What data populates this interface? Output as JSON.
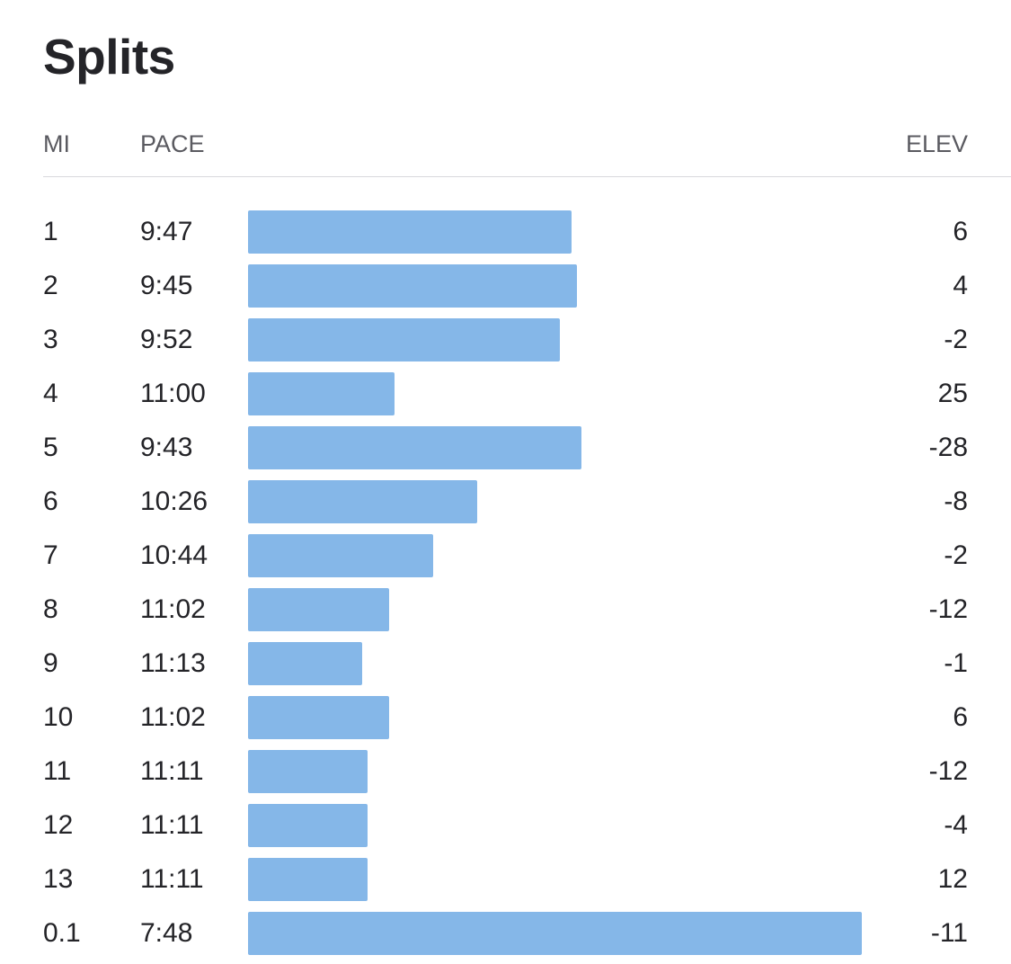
{
  "title": "Splits",
  "columns": {
    "mi": "MI",
    "pace": "PACE",
    "elev": "ELEV"
  },
  "bar_color": "#85b7e8",
  "chart_data": {
    "type": "bar",
    "orientation": "horizontal",
    "title": "Splits",
    "categories": [
      "1",
      "2",
      "3",
      "4",
      "5",
      "6",
      "7",
      "8",
      "9",
      "10",
      "11",
      "12",
      "13",
      "0.1"
    ],
    "pace_labels": [
      "9:47",
      "9:45",
      "9:52",
      "11:00",
      "9:43",
      "10:26",
      "10:44",
      "11:02",
      "11:13",
      "11:02",
      "11:11",
      "11:11",
      "11:11",
      "7:48"
    ],
    "pace_seconds": [
      587,
      585,
      592,
      660,
      583,
      626,
      644,
      662,
      673,
      662,
      671,
      671,
      671,
      468
    ],
    "elevation": [
      6,
      4,
      -2,
      25,
      -28,
      -8,
      -2,
      -12,
      -1,
      6,
      -12,
      -4,
      12,
      -11
    ],
    "xlabel": "",
    "ylabel": ""
  }
}
